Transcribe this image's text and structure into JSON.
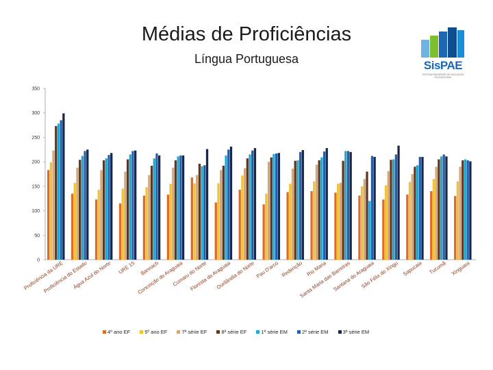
{
  "header": {
    "title": "Médias de Proficiências",
    "subtitle": "Língua Portuguesa"
  },
  "logo": {
    "text": "SisPAE",
    "subtext": "SISTEMA PARAENSE DE AVALIAÇÃO EDUCACIONAL"
  },
  "chart_data": {
    "type": "bar",
    "title": "Médias de Proficiências",
    "subtitle": "Língua Portuguesa",
    "ylim": [
      0,
      350
    ],
    "yticks": [
      0,
      50,
      100,
      150,
      200,
      250,
      300,
      350
    ],
    "grid": false,
    "legend_position": "bottom",
    "categories": [
      "Proficiência da URE",
      "Proficiência do Estado",
      "Água Azul do Norte",
      "URE 15",
      "Bannach",
      "Conceição do Araguaia",
      "Cumaru do Norte",
      "Floresta do Araguaia",
      "Ourilândia do Norte",
      "Pau D'arco",
      "Redenção",
      "Rio Maria",
      "Santa Maria das Barreiras",
      "Santana do Araguaia",
      "São Félix do Xingu",
      "Sapucaia",
      "Tucumã",
      "Xinguara"
    ],
    "series": [
      {
        "name": "4º ano EF",
        "color": "#E06A2A",
        "values": [
          183,
          135,
          123,
          115,
          131,
          133,
          168,
          117,
          143,
          113,
          138,
          140,
          137,
          131,
          123,
          133,
          140,
          130
        ]
      },
      {
        "name": "5º ano EF",
        "color": "#F2C230",
        "values": [
          199,
          157,
          143,
          145,
          148,
          155,
          156,
          156,
          172,
          135,
          155,
          160,
          155,
          150,
          152,
          159,
          165,
          160
        ]
      },
      {
        "name": "7ª série EF",
        "color": "#D3A77C",
        "values": [
          223,
          188,
          183,
          180,
          173,
          188,
          173,
          183,
          187,
          200,
          186,
          194,
          157,
          165,
          181,
          175,
          190,
          190
        ]
      },
      {
        "name": "8ª série EF",
        "color": "#5E3622",
        "values": [
          273,
          204,
          203,
          205,
          192,
          203,
          196,
          192,
          207,
          209,
          202,
          203,
          202,
          180,
          204,
          190,
          205,
          203
        ]
      },
      {
        "name": "1ª série EM",
        "color": "#21A9D0",
        "values": [
          278,
          212,
          207,
          215,
          207,
          211,
          191,
          213,
          215,
          216,
          203,
          209,
          222,
          120,
          205,
          193,
          211,
          205
        ]
      },
      {
        "name": "2ª série EM",
        "color": "#2A5DA8",
        "values": [
          285,
          222,
          214,
          222,
          217,
          213,
          193,
          225,
          223,
          217,
          220,
          221,
          222,
          212,
          215,
          210,
          215,
          203
        ]
      },
      {
        "name": "3ª série EM",
        "color": "#16294D",
        "values": [
          299,
          225,
          218,
          223,
          213,
          213,
          226,
          231,
          228,
          218,
          224,
          228,
          220,
          210,
          233,
          210,
          211,
          201
        ]
      }
    ]
  }
}
